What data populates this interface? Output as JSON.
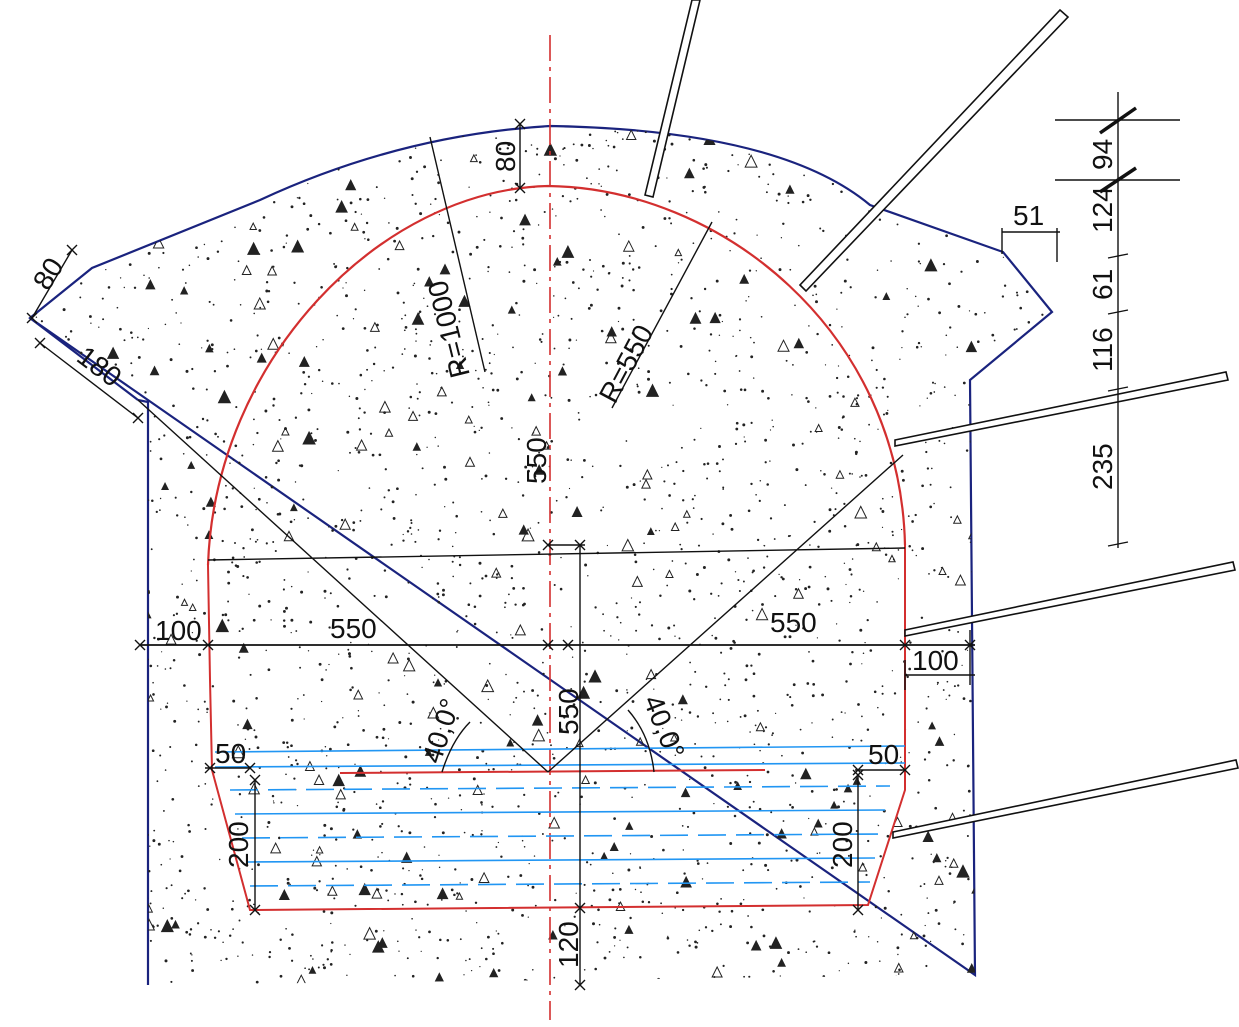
{
  "colors": {
    "outline": "#1a237e",
    "intrados": "#d32f2f",
    "centerline": "#d32f2f",
    "water": "#2196f3",
    "concrete_fill": "#ffffff",
    "ink": "#111111"
  },
  "labels": {
    "radius_outer": "R=1000",
    "radius_inner": "R=550",
    "crown_thickness": "80",
    "crown_height": "550",
    "height_lower": "550",
    "half_width_left": "550",
    "half_width_right": "550",
    "wall_left": "100",
    "wall_right": "100",
    "angle_left": "40,0°",
    "angle_right": "40,0°",
    "step_left": "50",
    "step_right": "50",
    "depth_left": "200",
    "depth_right": "200",
    "invert_thickness": "120",
    "left_slope_thickness": "80",
    "left_slope_length": "180",
    "right_offset": "51"
  },
  "right_chain": [
    "94",
    "124",
    "61",
    "116",
    "235"
  ]
}
